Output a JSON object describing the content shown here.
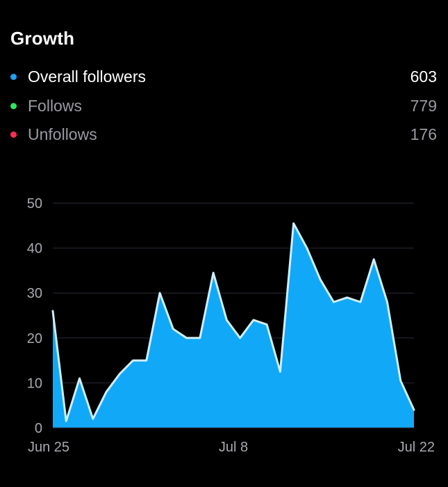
{
  "header": {
    "title": "Growth"
  },
  "legend": [
    {
      "label": "Overall followers",
      "value": "603",
      "color": "#1DA1F2"
    },
    {
      "label": "Follows",
      "value": "779",
      "color": "#2ee65c"
    },
    {
      "label": "Unfollows",
      "value": "176",
      "color": "#ff2d55"
    }
  ],
  "chart_data": {
    "type": "area",
    "series": [
      {
        "name": "Overall followers",
        "color": "#11a8f8",
        "values": [
          26,
          1.5,
          11,
          2,
          8,
          12,
          15,
          15,
          30,
          22,
          20,
          20,
          34.5,
          24,
          20,
          24,
          23,
          12.5,
          45.5,
          40,
          33,
          28,
          29,
          28,
          37.5,
          28,
          10.5,
          4
        ]
      }
    ],
    "x_tick_labels": [
      {
        "index": 0,
        "label": "Jun 25"
      },
      {
        "index": 13.5,
        "label": "Jul 8"
      },
      {
        "index": 27,
        "label": "Jul 22"
      }
    ],
    "yticks": [
      0,
      10,
      20,
      30,
      40,
      50
    ],
    "ylim": [
      0,
      50
    ],
    "grid": true
  }
}
